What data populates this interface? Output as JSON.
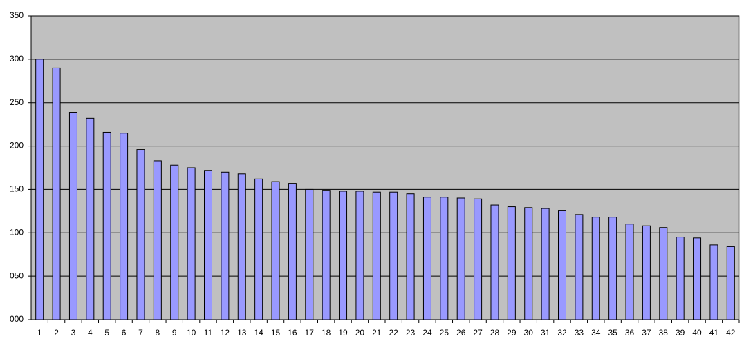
{
  "chart_data": {
    "type": "bar",
    "categories": [
      "1",
      "2",
      "3",
      "4",
      "5",
      "6",
      "7",
      "8",
      "9",
      "10",
      "11",
      "12",
      "13",
      "14",
      "15",
      "16",
      "17",
      "18",
      "19",
      "20",
      "21",
      "22",
      "23",
      "24",
      "25",
      "26",
      "27",
      "28",
      "29",
      "30",
      "31",
      "32",
      "33",
      "34",
      "35",
      "36",
      "37",
      "38",
      "39",
      "40",
      "41",
      "42"
    ],
    "values": [
      300,
      290,
      239,
      232,
      216,
      215,
      196,
      183,
      178,
      175,
      172,
      170,
      168,
      162,
      159,
      157,
      150,
      149,
      148,
      148,
      147,
      147,
      145,
      141,
      141,
      140,
      139,
      132,
      130,
      129,
      128,
      126,
      121,
      118,
      118,
      110,
      108,
      106,
      95,
      94,
      86,
      84
    ],
    "color": "#9999ff",
    "ylim": [
      0,
      350
    ],
    "yticks": [
      {
        "value": 0,
        "label": "000"
      },
      {
        "value": 50,
        "label": "050"
      },
      100,
      150,
      200,
      250,
      300,
      350
    ],
    "grid": true
  }
}
